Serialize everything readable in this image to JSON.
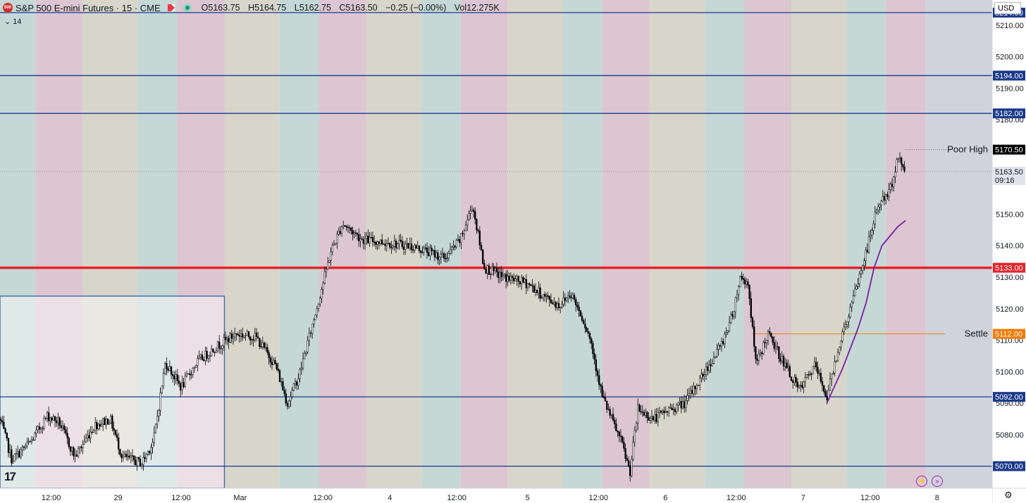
{
  "header": {
    "symbol_badge": "500",
    "title": "S&P 500 E-mini Futures · 15 · CME",
    "open": "O5163.75",
    "high": "H5164.75",
    "low": "L5162.75",
    "close": "C5163.50",
    "change": "−0.25 (−0.00%)",
    "volume": "Vol12.275K",
    "sub_indicator": "14",
    "currency": "USD"
  },
  "chart_data": {
    "type": "candlestick",
    "ylim": [
      5063,
      5218
    ],
    "x_tick_labels": [
      {
        "label": "12:00",
        "t": 1.3
      },
      {
        "label": "29",
        "t": 3.0
      },
      {
        "label": "12:00",
        "t": 4.6
      },
      {
        "label": "Mar",
        "t": 6.1
      },
      {
        "label": "12:00",
        "t": 8.2
      },
      {
        "label": "4",
        "t": 9.9
      },
      {
        "label": "12:00",
        "t": 11.6
      },
      {
        "label": "5",
        "t": 13.4
      },
      {
        "label": "12:00",
        "t": 15.2
      },
      {
        "label": "6",
        "t": 16.9
      },
      {
        "label": "12:00",
        "t": 18.7
      },
      {
        "label": "7",
        "t": 20.4
      },
      {
        "label": "12:00",
        "t": 22.1
      },
      {
        "label": "8",
        "t": 23.8
      }
    ],
    "y_tick_labels": [
      "5210.00",
      "5200.00",
      "5190.00",
      "5180.00",
      "5150.00",
      "5140.00",
      "5130.00",
      "5120.00",
      "5110.00",
      "5100.00",
      "5090.00",
      "5080.00"
    ],
    "levels": [
      {
        "value": 5214.0,
        "label": "5214.00",
        "color": "#1a3a8a"
      },
      {
        "value": 5194.0,
        "label": "5194.00",
        "color": "#1a3a8a"
      },
      {
        "value": 5182.0,
        "label": "5182.00",
        "color": "#1a3a8a"
      },
      {
        "value": 5133.0,
        "label": "5133.00",
        "color": "#e3242b",
        "thick": true
      },
      {
        "value": 5092.0,
        "label": "5092.00",
        "color": "#1a3a8a"
      },
      {
        "value": 5070.0,
        "label": "5070.00",
        "color": "#1a3a8a"
      }
    ],
    "settle": {
      "value": 5112.0,
      "label": "5112.00",
      "text": "Settle",
      "color": "#f57c00"
    },
    "poor_high": {
      "value": 5170.5,
      "label": "5170.50",
      "text": "Poor High"
    },
    "last_price": {
      "value": 5163.5,
      "label": "5163.50",
      "countdown": "09:16"
    },
    "path_keypoints": [
      [
        0.0,
        5085
      ],
      [
        0.3,
        5072
      ],
      [
        0.8,
        5078
      ],
      [
        1.2,
        5086
      ],
      [
        1.5,
        5084
      ],
      [
        1.9,
        5073
      ],
      [
        2.4,
        5083
      ],
      [
        2.8,
        5085
      ],
      [
        3.1,
        5073
      ],
      [
        3.6,
        5071
      ],
      [
        3.9,
        5078
      ],
      [
        4.2,
        5103
      ],
      [
        4.6,
        5095
      ],
      [
        5.0,
        5103
      ],
      [
        5.5,
        5108
      ],
      [
        6.0,
        5112
      ],
      [
        6.5,
        5111
      ],
      [
        7.0,
        5102
      ],
      [
        7.3,
        5090
      ],
      [
        7.6,
        5099
      ],
      [
        8.0,
        5118
      ],
      [
        8.4,
        5138
      ],
      [
        8.7,
        5147
      ],
      [
        9.2,
        5142
      ],
      [
        9.8,
        5141
      ],
      [
        10.4,
        5140
      ],
      [
        10.9,
        5138
      ],
      [
        11.3,
        5136
      ],
      [
        11.7,
        5142
      ],
      [
        12.0,
        5153
      ],
      [
        12.3,
        5133
      ],
      [
        12.8,
        5130
      ],
      [
        13.4,
        5128
      ],
      [
        13.8,
        5124
      ],
      [
        14.2,
        5121
      ],
      [
        14.5,
        5125
      ],
      [
        14.8,
        5117
      ],
      [
        15.0,
        5110
      ],
      [
        15.3,
        5092
      ],
      [
        15.5,
        5086
      ],
      [
        15.8,
        5077
      ],
      [
        16.0,
        5068
      ],
      [
        16.2,
        5088
      ],
      [
        16.6,
        5085
      ],
      [
        17.0,
        5088
      ],
      [
        17.4,
        5090
      ],
      [
        17.8,
        5098
      ],
      [
        18.3,
        5108
      ],
      [
        18.6,
        5118
      ],
      [
        18.8,
        5130
      ],
      [
        19.0,
        5128
      ],
      [
        19.2,
        5102
      ],
      [
        19.5,
        5112
      ],
      [
        19.9,
        5103
      ],
      [
        20.3,
        5094
      ],
      [
        20.7,
        5102
      ],
      [
        21.0,
        5092
      ],
      [
        21.3,
        5108
      ],
      [
        21.6,
        5120
      ],
      [
        22.0,
        5138
      ],
      [
        22.3,
        5153
      ],
      [
        22.6,
        5157
      ],
      [
        22.8,
        5168
      ],
      [
        23.0,
        5163.5
      ]
    ],
    "moving_average": [
      [
        21.0,
        5090
      ],
      [
        21.4,
        5101
      ],
      [
        21.8,
        5114
      ],
      [
        22.0,
        5122
      ],
      [
        22.2,
        5133
      ],
      [
        22.4,
        5140
      ],
      [
        22.6,
        5143
      ],
      [
        22.8,
        5146
      ],
      [
        23.0,
        5148
      ]
    ],
    "session_bands": [
      {
        "t0": 0.0,
        "t1": 0.9,
        "color": "#c5d8d6"
      },
      {
        "t0": 0.9,
        "t1": 2.1,
        "color": "#dcc6d1"
      },
      {
        "t0": 2.1,
        "t1": 3.5,
        "color": "#d8d6cb"
      },
      {
        "t0": 3.5,
        "t1": 4.5,
        "color": "#c5d8d6"
      },
      {
        "t0": 4.5,
        "t1": 5.7,
        "color": "#dcc6d1"
      },
      {
        "t0": 5.7,
        "t1": 7.1,
        "color": "#d8d6cb"
      },
      {
        "t0": 7.1,
        "t1": 8.1,
        "color": "#c5d8d6"
      },
      {
        "t0": 8.1,
        "t1": 9.3,
        "color": "#dcc6d1"
      },
      {
        "t0": 9.3,
        "t1": 10.7,
        "color": "#d8d6cb"
      },
      {
        "t0": 10.7,
        "t1": 11.7,
        "color": "#c5d8d6"
      },
      {
        "t0": 11.7,
        "t1": 12.9,
        "color": "#dcc6d1"
      },
      {
        "t0": 12.9,
        "t1": 14.3,
        "color": "#d8d6cb"
      },
      {
        "t0": 14.3,
        "t1": 15.3,
        "color": "#c5d8d6"
      },
      {
        "t0": 15.3,
        "t1": 16.5,
        "color": "#dcc6d1"
      },
      {
        "t0": 16.5,
        "t1": 17.9,
        "color": "#d8d6cb"
      },
      {
        "t0": 17.9,
        "t1": 18.9,
        "color": "#c5d8d6"
      },
      {
        "t0": 18.9,
        "t1": 20.1,
        "color": "#dcc6d1"
      },
      {
        "t0": 20.1,
        "t1": 21.5,
        "color": "#d8d6cb"
      },
      {
        "t0": 21.5,
        "t1": 22.5,
        "color": "#c5d8d6"
      },
      {
        "t0": 22.5,
        "t1": 23.5,
        "color": "#dcc6d1"
      },
      {
        "t0": 23.5,
        "t1": 25.2,
        "color": "#d0d3dc"
      }
    ],
    "range_box": {
      "t0": 0.0,
      "t1": 5.7,
      "high": 5124,
      "low": 5063
    }
  }
}
